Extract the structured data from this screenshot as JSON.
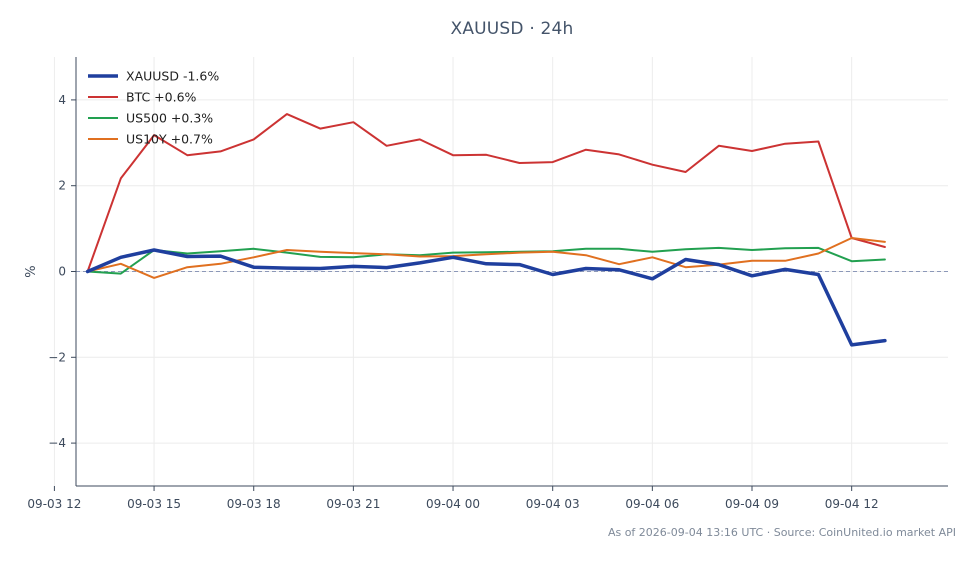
{
  "chart_data": {
    "type": "line",
    "title": "XAUUSD · 24h",
    "ylabel": "%",
    "xlabel": "",
    "footer": "As of 2026-09-04 13:16 UTC · Source: CoinUnited.io market API",
    "ylim": [
      -5,
      5
    ],
    "yticks": [
      -4,
      -2,
      0,
      2,
      4
    ],
    "xlim": [
      -0.35,
      25.9
    ],
    "xticks": [
      {
        "x": -1,
        "label": "09-03 12"
      },
      {
        "x": 2,
        "label": "09-03 15"
      },
      {
        "x": 5,
        "label": "09-03 18"
      },
      {
        "x": 8,
        "label": "09-03 21"
      },
      {
        "x": 11,
        "label": "09-04 00"
      },
      {
        "x": 14,
        "label": "09-04 03"
      },
      {
        "x": 17,
        "label": "09-04 06"
      },
      {
        "x": 20,
        "label": "09-04 09"
      },
      {
        "x": 23,
        "label": "09-04 12"
      }
    ],
    "grid": true,
    "legend_position": "top-left",
    "zero_line": true,
    "series": [
      {
        "name": "XAUUSD -1.6%",
        "color": "#1f3f9e",
        "width": 3.5,
        "values": [
          0,
          0.33,
          0.5,
          0.35,
          0.36,
          0.1,
          0.08,
          0.07,
          0.12,
          0.09,
          0.2,
          0.33,
          0.18,
          0.16,
          -0.07,
          0.07,
          0.04,
          -0.17,
          0.28,
          0.16,
          -0.1,
          0.05,
          -0.07,
          -1.71,
          -1.61
        ]
      },
      {
        "name": "BTC +0.6%",
        "color": "#cc3333",
        "width": 2,
        "values": [
          0,
          2.17,
          3.18,
          2.71,
          2.8,
          3.08,
          3.67,
          3.33,
          3.48,
          2.93,
          3.08,
          2.71,
          2.72,
          2.53,
          2.55,
          2.84,
          2.73,
          2.49,
          2.32,
          2.93,
          2.81,
          2.98,
          3.03,
          0.78,
          0.57
        ]
      },
      {
        "name": "US500 +0.3%",
        "color": "#22a050",
        "width": 2,
        "values": [
          0,
          -0.05,
          0.5,
          0.42,
          0.47,
          0.53,
          0.44,
          0.34,
          0.33,
          0.4,
          0.38,
          0.44,
          0.45,
          0.46,
          0.47,
          0.53,
          0.53,
          0.46,
          0.52,
          0.55,
          0.5,
          0.54,
          0.55,
          0.24,
          0.28
        ]
      },
      {
        "name": "US10Y +0.7%",
        "color": "#e07020",
        "width": 2,
        "values": [
          0,
          0.18,
          -0.15,
          0.1,
          0.18,
          0.33,
          0.5,
          0.46,
          0.43,
          0.4,
          0.35,
          0.36,
          0.4,
          0.44,
          0.46,
          0.38,
          0.17,
          0.33,
          0.1,
          0.16,
          0.25,
          0.25,
          0.42,
          0.78,
          0.69
        ]
      }
    ]
  }
}
